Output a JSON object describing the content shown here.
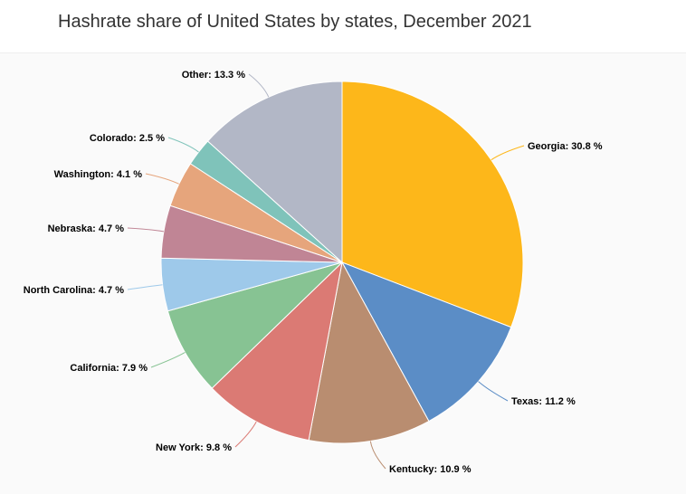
{
  "chart_data": {
    "type": "pie",
    "title": "Hashrate share of United States by states, December 2021",
    "unit": "%",
    "slices": [
      {
        "label": "Georgia",
        "value": 30.8,
        "display": "30.8 %",
        "color": "#FDB71A"
      },
      {
        "label": "Texas",
        "value": 11.2,
        "display": "11.2 %",
        "color": "#5B8DC6"
      },
      {
        "label": "Kentucky",
        "value": 10.9,
        "display": "10.9 %",
        "color": "#B98D70"
      },
      {
        "label": "New York",
        "value": 9.8,
        "display": "9.8 %",
        "color": "#DB7A74"
      },
      {
        "label": "California",
        "value": 7.9,
        "display": "7.9 %",
        "color": "#87C393"
      },
      {
        "label": "North Carolina",
        "value": 4.7,
        "display": "4.7 %",
        "color": "#9EC9EA"
      },
      {
        "label": "Nebraska",
        "value": 4.7,
        "display": "4.7 %",
        "color": "#C08595"
      },
      {
        "label": "Washington",
        "value": 4.1,
        "display": "4.1 %",
        "color": "#E6A57C"
      },
      {
        "label": "Colorado",
        "value": 2.5,
        "display": "2.5 %",
        "color": "#7FC3BA"
      },
      {
        "label": "Other",
        "value": 13.3,
        "display": "13.3 %",
        "color": "#B2B7C6"
      }
    ]
  }
}
